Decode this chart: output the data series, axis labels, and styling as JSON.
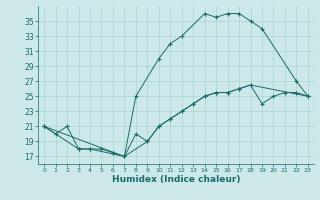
{
  "xlabel": "Humidex (Indice chaleur)",
  "xlim": [
    -0.5,
    23.5
  ],
  "ylim": [
    16,
    37
  ],
  "xticks": [
    0,
    1,
    2,
    3,
    4,
    5,
    6,
    7,
    8,
    9,
    10,
    11,
    12,
    13,
    14,
    15,
    16,
    17,
    18,
    19,
    20,
    21,
    22,
    23
  ],
  "yticks": [
    17,
    19,
    21,
    23,
    25,
    27,
    29,
    31,
    33,
    35
  ],
  "bg_color": "#cce8e8",
  "line_color": "#1a6b6b",
  "series": [
    {
      "x": [
        0,
        1,
        2,
        3,
        4,
        5,
        6,
        7,
        8,
        9,
        10,
        11,
        12,
        13,
        14,
        15,
        16,
        17,
        18,
        19,
        20,
        21,
        22,
        23
      ],
      "y": [
        21,
        20,
        21,
        18,
        18,
        18,
        17.5,
        17,
        20,
        19,
        21,
        22,
        23,
        24,
        25,
        25.5,
        25.5,
        26,
        26.5,
        24,
        25,
        25.5,
        25.5,
        25
      ]
    },
    {
      "x": [
        0,
        3,
        4,
        7,
        8,
        10,
        11,
        12,
        14,
        15,
        16,
        17,
        18,
        19,
        22,
        23
      ],
      "y": [
        21,
        18,
        18,
        17,
        25,
        30,
        32,
        33,
        36,
        35.5,
        36,
        36,
        35,
        34,
        27,
        25
      ]
    },
    {
      "x": [
        0,
        7,
        9,
        10,
        11,
        12,
        13,
        14,
        15,
        16,
        17,
        18,
        23
      ],
      "y": [
        21,
        17,
        19,
        21,
        22,
        23,
        24,
        25,
        25.5,
        25.5,
        26,
        26.5,
        25
      ]
    }
  ]
}
